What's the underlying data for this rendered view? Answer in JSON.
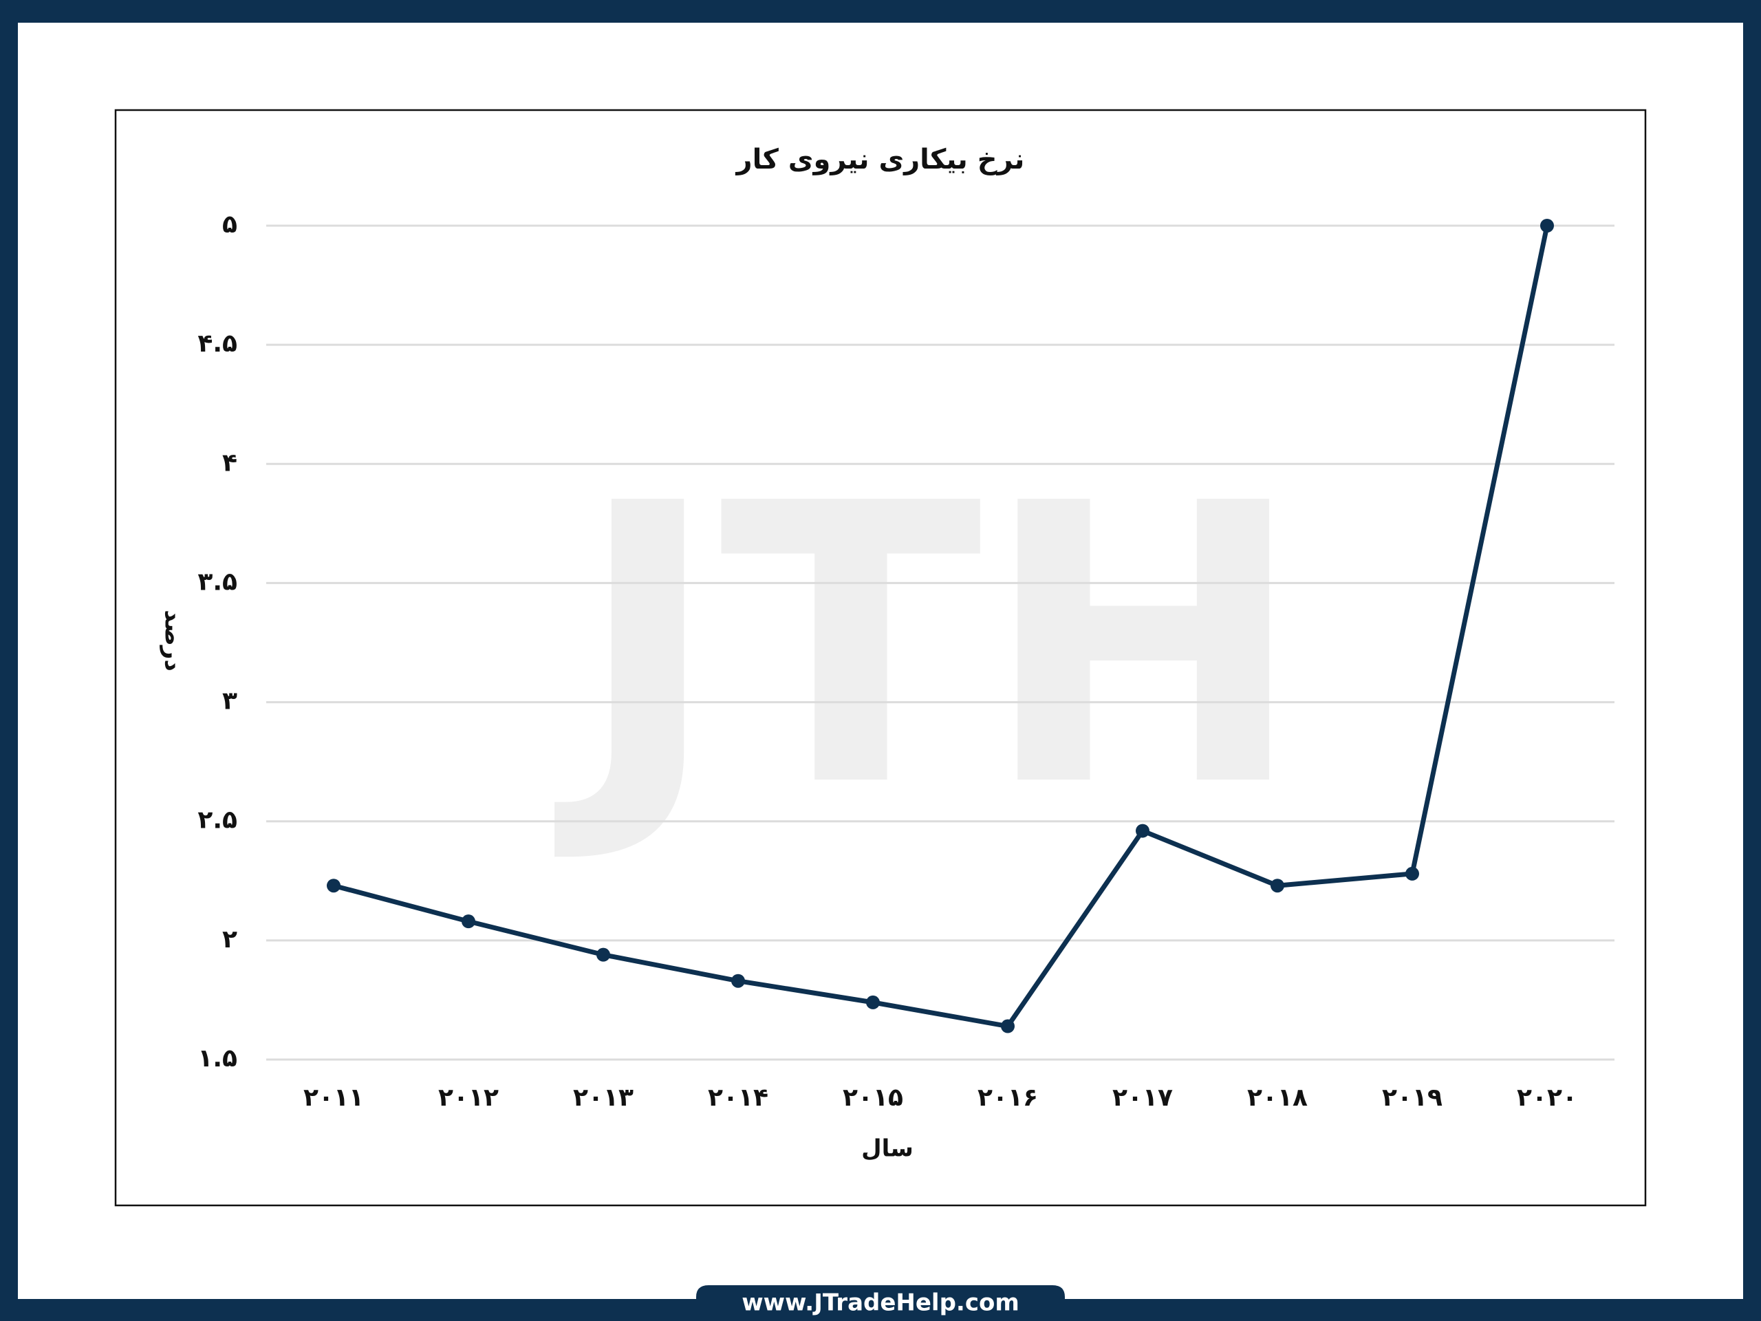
{
  "chart_data": {
    "type": "line",
    "title": "نرخ بیکاری نیروی کار",
    "x_label": "سال",
    "y_label": "درصد",
    "categories": [
      "۲۰۱۱",
      "۲۰۱۲",
      "۲۰۱۳",
      "۲۰۱۴",
      "۲۰۱۵",
      "۲۰۱۶",
      "۲۰۱۷",
      "۲۰۱۸",
      "۲۰۱۹",
      "۲۰۲۰"
    ],
    "values": [
      2.23,
      2.08,
      1.94,
      1.83,
      1.74,
      1.64,
      2.46,
      2.23,
      2.28,
      5
    ],
    "color": "#0d3050",
    "ylim": [
      1.5,
      5
    ],
    "yticks": [
      {
        "value": 1.5,
        "label": "۱.۵"
      },
      {
        "value": 2,
        "label": "۲"
      },
      {
        "value": 2.5,
        "label": "۲.۵"
      },
      {
        "value": 3,
        "label": "۳"
      },
      {
        "value": 3.5,
        "label": "۳.۵"
      },
      {
        "value": 4,
        "label": "۴"
      },
      {
        "value": 4.5,
        "label": "۴.۵"
      },
      {
        "value": 5,
        "label": "۵"
      }
    ],
    "grid": true
  },
  "watermark": "JTH",
  "footer": "www.JTradeHelp.com"
}
